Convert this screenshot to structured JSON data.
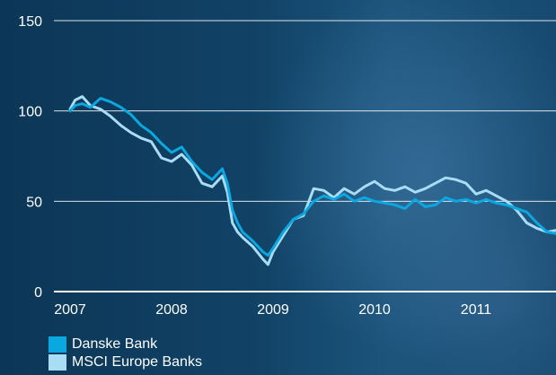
{
  "chart_data": {
    "type": "line",
    "title": "",
    "xlabel": "",
    "ylabel": "",
    "ylim": [
      0,
      150
    ],
    "y_ticks": [
      0,
      50,
      100,
      150
    ],
    "x_ticks": [
      "2007",
      "2008",
      "2009",
      "2010",
      "2011"
    ],
    "x_range": [
      2007.0,
      2011.85
    ],
    "grid": "horizontal",
    "legend_position": "bottom-left",
    "series": [
      {
        "name": "Danske Bank",
        "color": "#0aa7e0",
        "x": [
          2007.0,
          2007.05,
          2007.12,
          2007.2,
          2007.3,
          2007.4,
          2007.5,
          2007.6,
          2007.7,
          2007.8,
          2007.9,
          2008.0,
          2008.1,
          2008.2,
          2008.3,
          2008.4,
          2008.5,
          2008.55,
          2008.6,
          2008.65,
          2008.7,
          2008.8,
          2008.9,
          2008.95,
          2009.0,
          2009.1,
          2009.2,
          2009.3,
          2009.4,
          2009.5,
          2009.6,
          2009.7,
          2009.8,
          2009.9,
          2010.0,
          2010.1,
          2010.2,
          2010.3,
          2010.4,
          2010.5,
          2010.6,
          2010.7,
          2010.8,
          2010.9,
          2011.0,
          2011.1,
          2011.2,
          2011.3,
          2011.4,
          2011.5,
          2011.6,
          2011.7,
          2011.8,
          2011.85
        ],
        "values": [
          100,
          103,
          104,
          102,
          107,
          105,
          102,
          98,
          92,
          88,
          82,
          77,
          80,
          72,
          66,
          62,
          68,
          60,
          45,
          38,
          33,
          28,
          22,
          20,
          24,
          33,
          40,
          43,
          50,
          53,
          51,
          54,
          50,
          52,
          50,
          49,
          48,
          46,
          51,
          47,
          48,
          52,
          50,
          51,
          49,
          51,
          49,
          48,
          46,
          44,
          38,
          33,
          32,
          31
        ]
      },
      {
        "name": "MSCI Europe Banks",
        "color": "#a9dcf5",
        "x": [
          2007.0,
          2007.05,
          2007.12,
          2007.2,
          2007.3,
          2007.4,
          2007.5,
          2007.6,
          2007.7,
          2007.8,
          2007.9,
          2008.0,
          2008.1,
          2008.2,
          2008.3,
          2008.4,
          2008.5,
          2008.55,
          2008.6,
          2008.65,
          2008.7,
          2008.8,
          2008.9,
          2008.95,
          2009.0,
          2009.1,
          2009.2,
          2009.3,
          2009.4,
          2009.5,
          2009.6,
          2009.7,
          2009.8,
          2009.9,
          2010.0,
          2010.1,
          2010.2,
          2010.3,
          2010.4,
          2010.5,
          2010.6,
          2010.7,
          2010.8,
          2010.9,
          2011.0,
          2011.1,
          2011.2,
          2011.3,
          2011.4,
          2011.5,
          2011.6,
          2011.7,
          2011.8,
          2011.85
        ],
        "values": [
          101,
          106,
          108,
          103,
          101,
          97,
          92,
          88,
          85,
          83,
          74,
          72,
          76,
          70,
          60,
          58,
          64,
          55,
          38,
          33,
          30,
          25,
          18,
          15,
          22,
          31,
          40,
          42,
          57,
          56,
          52,
          57,
          54,
          58,
          61,
          57,
          56,
          58,
          55,
          57,
          60,
          63,
          62,
          60,
          54,
          56,
          53,
          50,
          45,
          38,
          35,
          33,
          34,
          33
        ]
      }
    ]
  }
}
